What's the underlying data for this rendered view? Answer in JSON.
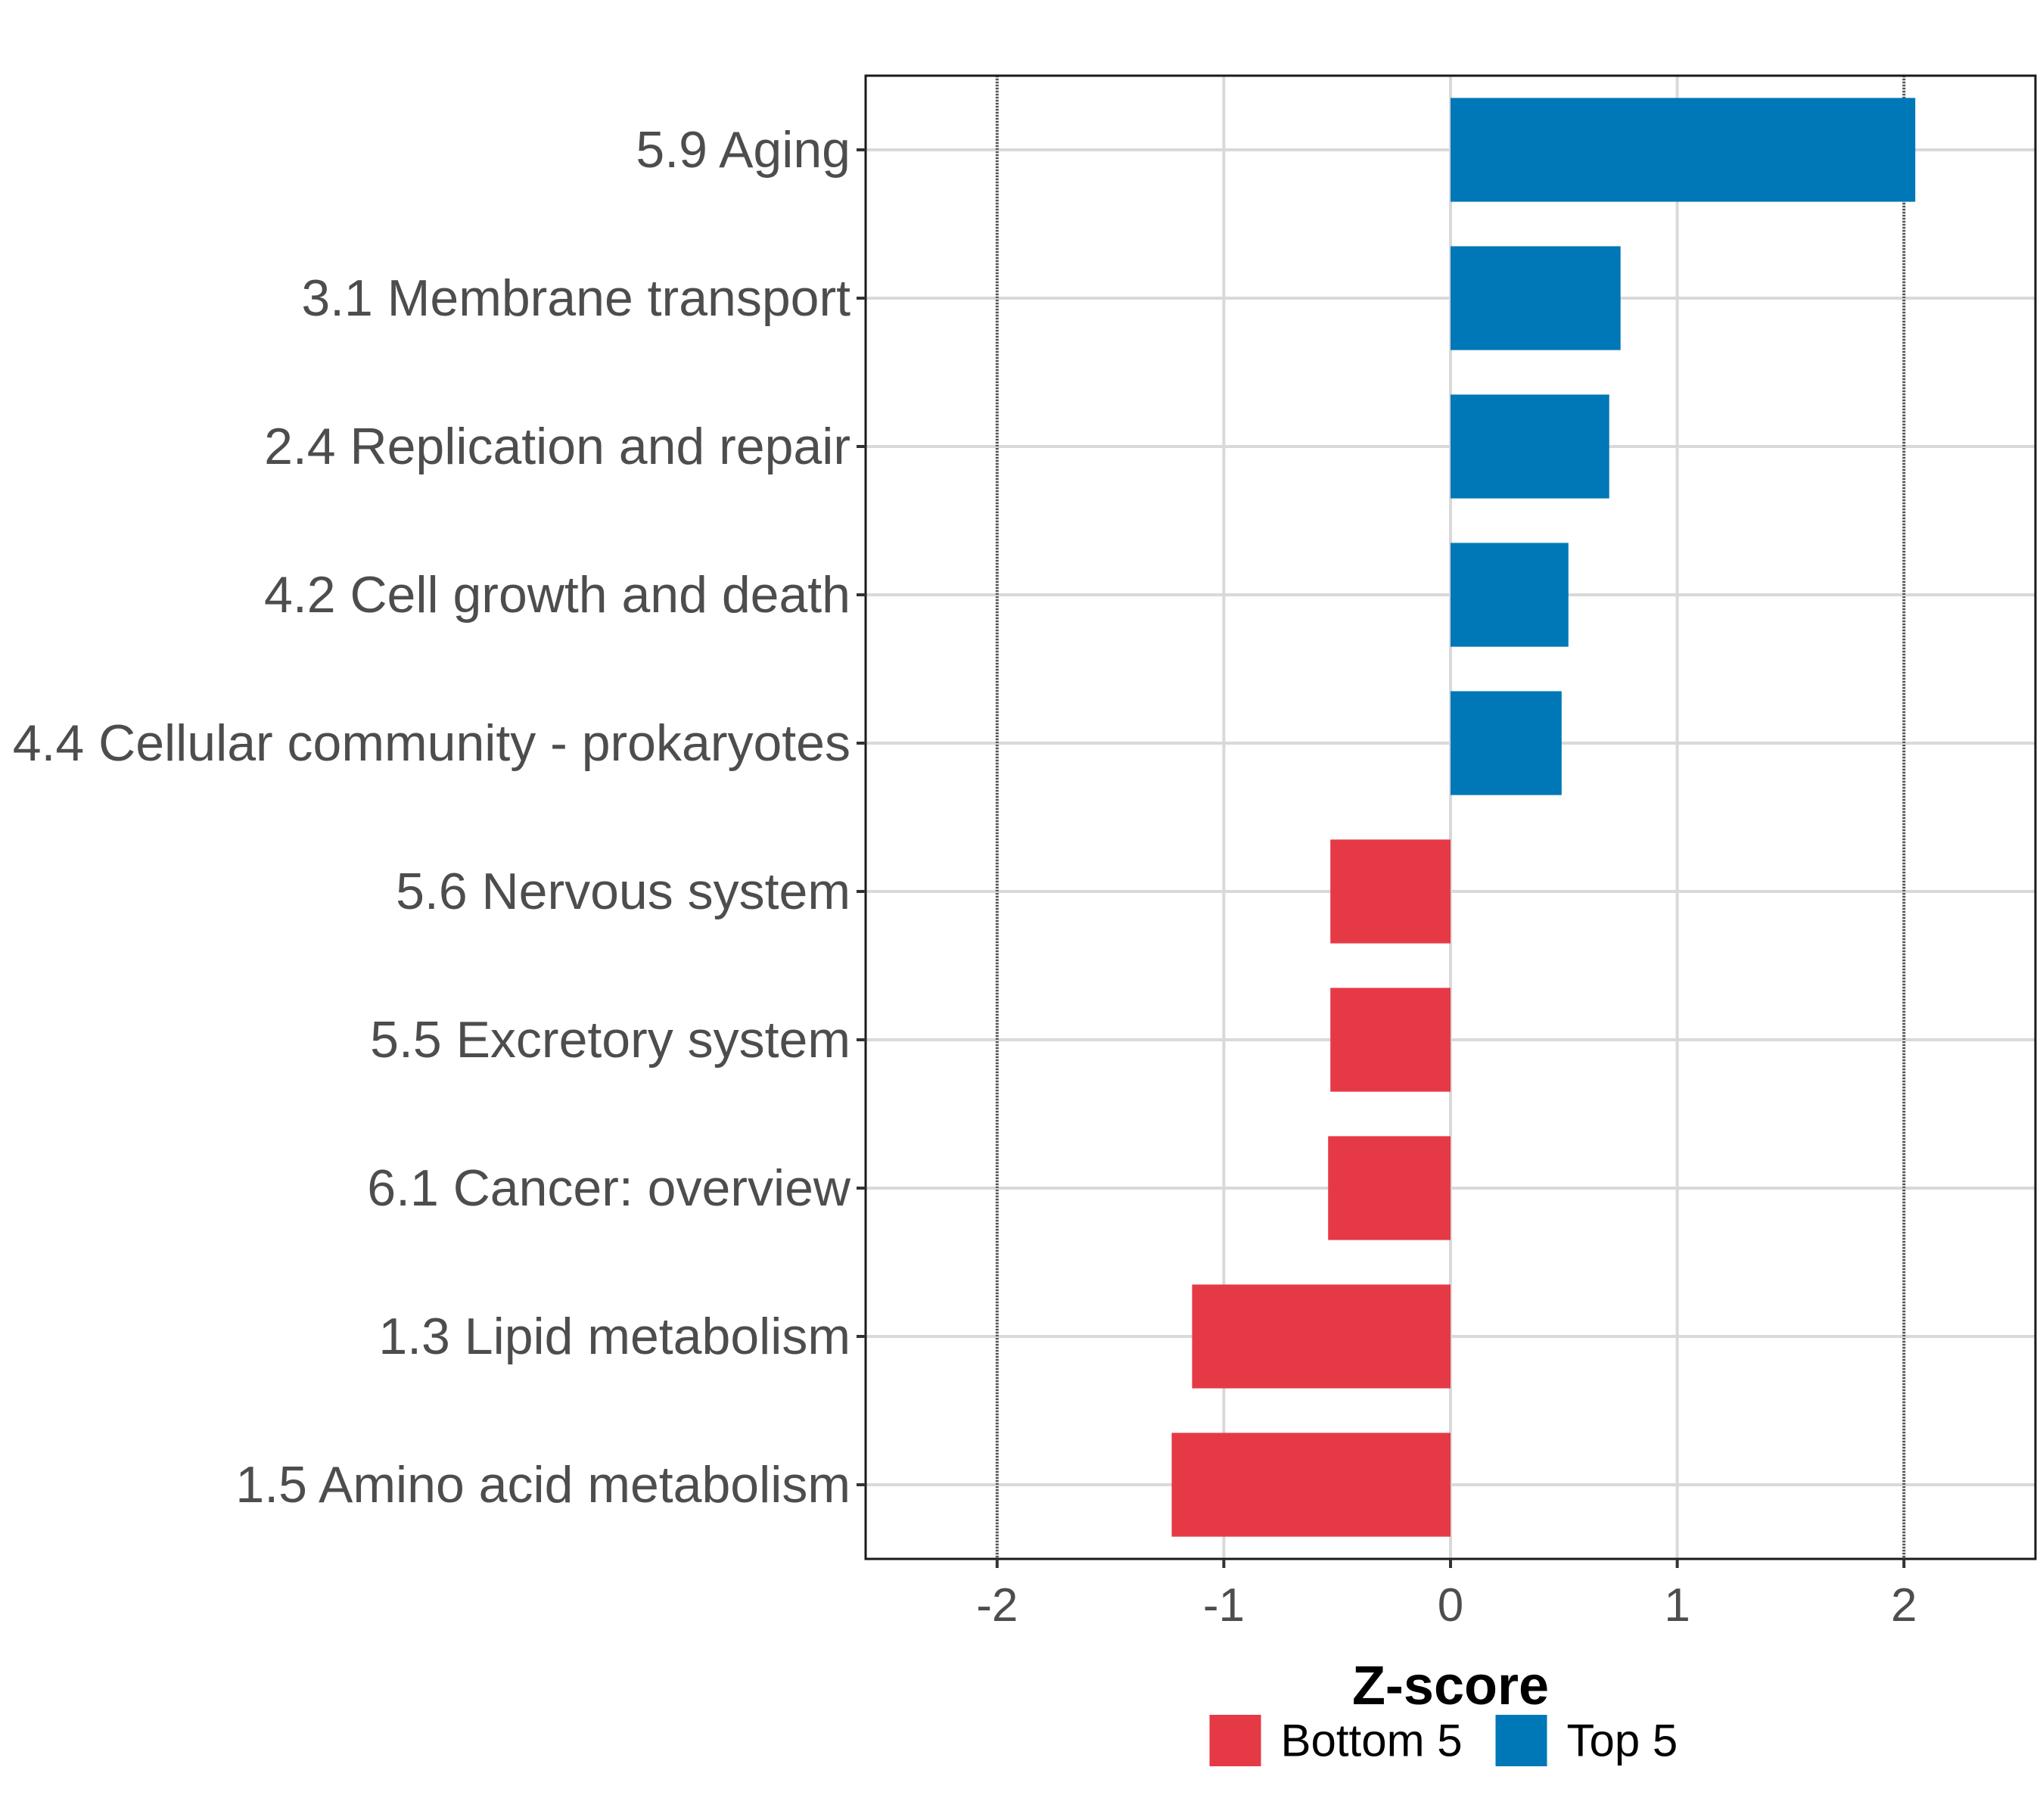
{
  "chart_data": {
    "type": "bar",
    "orientation": "horizontal",
    "categories": [
      "5.9 Aging",
      "3.1 Membrane transport",
      "2.4 Replication and repair",
      "4.2 Cell growth and death",
      "4.4 Cellular community - prokaryotes",
      "5.6 Nervous system",
      "5.5 Excretory system",
      "6.1 Cancer: overview",
      "1.3 Lipid metabolism",
      "1.5 Amino acid metabolism"
    ],
    "values": [
      2.05,
      0.75,
      0.7,
      0.52,
      0.49,
      -0.53,
      -0.53,
      -0.54,
      -1.14,
      -1.23
    ],
    "groups": [
      "Top 5",
      "Top 5",
      "Top 5",
      "Top 5",
      "Top 5",
      "Bottom 5",
      "Bottom 5",
      "Bottom 5",
      "Bottom 5",
      "Bottom 5"
    ],
    "xlabel": "Z-score",
    "ylabel": "",
    "xlim": [
      -2.58,
      2.58
    ],
    "x_ticks": [
      -2,
      -1,
      0,
      1,
      2
    ],
    "x_tick_labels": [
      "-2",
      "-1",
      "0",
      "1",
      "2"
    ],
    "reference_lines": [
      -2,
      2
    ],
    "grid": true,
    "legend": {
      "placement": "bottom",
      "entries": [
        {
          "label": "Bottom 5",
          "color": "#e63946"
        },
        {
          "label": "Top 5",
          "color": "#0077b6"
        }
      ]
    },
    "colors": {
      "Top 5": "#0077b6",
      "Bottom 5": "#e63946"
    }
  }
}
